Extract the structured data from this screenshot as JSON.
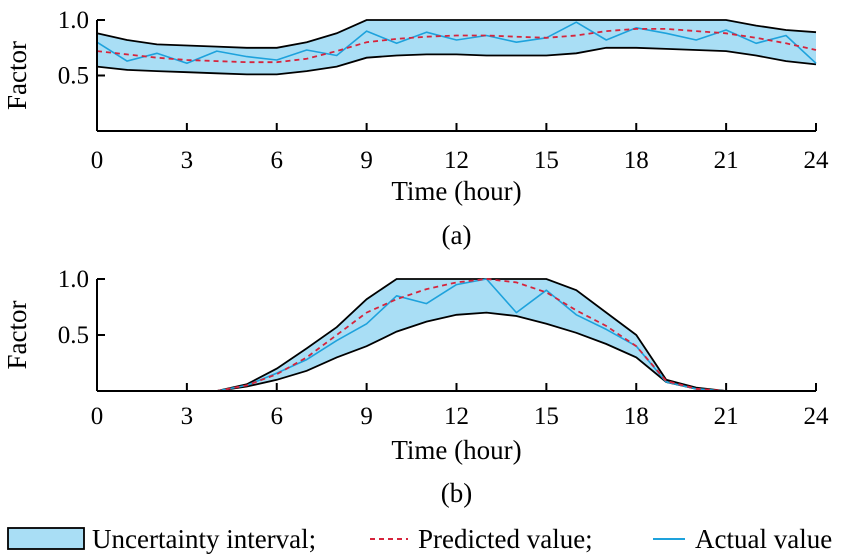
{
  "chart_data": [
    {
      "type": "line",
      "panel_label": "(a)",
      "xlabel": "Time (hour)",
      "ylabel": "Factor",
      "xlim": [
        0,
        24
      ],
      "ylim": [
        0,
        1.0
      ],
      "xticks": [
        "0",
        "3",
        "6",
        "9",
        "12",
        "15",
        "18",
        "21",
        "24"
      ],
      "yticks": [
        "0.5",
        "1.0"
      ],
      "grid": false,
      "x": [
        0,
        1,
        2,
        3,
        4,
        5,
        6,
        7,
        8,
        9,
        10,
        11,
        12,
        13,
        14,
        15,
        16,
        17,
        18,
        19,
        20,
        21,
        22,
        23,
        24
      ],
      "series": [
        {
          "name": "Uncertainty interval",
          "kind": "band",
          "lower": [
            0.58,
            0.55,
            0.54,
            0.53,
            0.52,
            0.51,
            0.51,
            0.54,
            0.58,
            0.66,
            0.68,
            0.69,
            0.69,
            0.68,
            0.68,
            0.68,
            0.7,
            0.75,
            0.75,
            0.74,
            0.73,
            0.72,
            0.68,
            0.63,
            0.6
          ],
          "upper": [
            0.88,
            0.82,
            0.78,
            0.77,
            0.76,
            0.75,
            0.75,
            0.8,
            0.88,
            1.0,
            1.0,
            1.0,
            1.0,
            1.0,
            1.0,
            1.0,
            1.0,
            1.0,
            1.0,
            1.0,
            1.0,
            1.0,
            0.95,
            0.91,
            0.89
          ]
        },
        {
          "name": "Predicted value",
          "kind": "dashed",
          "values": [
            0.72,
            0.69,
            0.66,
            0.64,
            0.63,
            0.62,
            0.62,
            0.65,
            0.72,
            0.8,
            0.83,
            0.85,
            0.86,
            0.86,
            0.85,
            0.84,
            0.86,
            0.9,
            0.92,
            0.92,
            0.9,
            0.88,
            0.84,
            0.79,
            0.73
          ]
        },
        {
          "name": "Actual value",
          "kind": "solid",
          "values": [
            0.8,
            0.63,
            0.7,
            0.61,
            0.72,
            0.67,
            0.64,
            0.73,
            0.68,
            0.9,
            0.79,
            0.89,
            0.82,
            0.86,
            0.8,
            0.84,
            0.98,
            0.82,
            0.93,
            0.88,
            0.82,
            0.91,
            0.79,
            0.86,
            0.61
          ]
        }
      ]
    },
    {
      "type": "line",
      "panel_label": "(b)",
      "xlabel": "Time (hour)",
      "ylabel": "Factor",
      "xlim": [
        0,
        24
      ],
      "ylim": [
        0,
        1.0
      ],
      "xticks": [
        "0",
        "3",
        "6",
        "9",
        "12",
        "15",
        "18",
        "21",
        "24"
      ],
      "yticks": [
        "0.5",
        "1.0"
      ],
      "grid": false,
      "x": [
        4,
        5,
        6,
        7,
        8,
        9,
        10,
        11,
        12,
        13,
        14,
        15,
        16,
        17,
        18,
        19,
        20,
        21
      ],
      "series": [
        {
          "name": "Uncertainty interval",
          "kind": "band",
          "lower": [
            0.0,
            0.04,
            0.1,
            0.18,
            0.3,
            0.4,
            0.53,
            0.62,
            0.68,
            0.7,
            0.67,
            0.6,
            0.52,
            0.42,
            0.3,
            0.08,
            0.02,
            0.0
          ],
          "upper": [
            0.0,
            0.06,
            0.2,
            0.38,
            0.57,
            0.82,
            1.0,
            1.0,
            1.0,
            1.0,
            1.0,
            1.0,
            0.9,
            0.7,
            0.5,
            0.1,
            0.03,
            0.0
          ]
        },
        {
          "name": "Predicted value",
          "kind": "dashed",
          "values": [
            0.0,
            0.05,
            0.15,
            0.3,
            0.5,
            0.7,
            0.82,
            0.91,
            0.97,
            1.0,
            0.97,
            0.88,
            0.72,
            0.58,
            0.4,
            0.09,
            0.02,
            0.0
          ]
        },
        {
          "name": "Actual value",
          "kind": "solid",
          "values": [
            0.0,
            0.05,
            0.16,
            0.28,
            0.45,
            0.6,
            0.85,
            0.78,
            0.95,
            1.0,
            0.7,
            0.9,
            0.68,
            0.55,
            0.4,
            0.08,
            0.02,
            0.0
          ]
        }
      ]
    }
  ],
  "legend": {
    "items": [
      {
        "label": "Uncertainty interval;",
        "kind": "band"
      },
      {
        "label": "Predicted value;",
        "kind": "dashed"
      },
      {
        "label": "Actual value",
        "kind": "solid"
      }
    ],
    "placement": "bottom"
  },
  "colors": {
    "band_fill": "#a9def5",
    "band_edge": "#000000",
    "predicted": "#d6243c",
    "actual": "#1ea2dc",
    "axis": "#000000"
  }
}
